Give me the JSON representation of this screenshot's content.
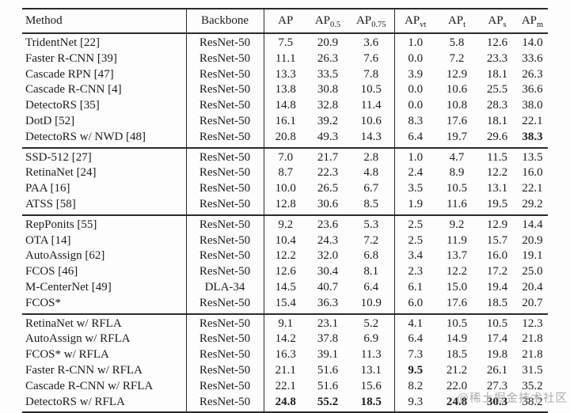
{
  "page": {
    "background": "#fdfdfd",
    "text_color": "#1b1b1b",
    "rule_color": "#2b2b2b",
    "watermark": {
      "text": "@稀土掘金技术社区",
      "color": "#919191"
    }
  },
  "table": {
    "header": {
      "method": "Method",
      "backbone": "Backbone",
      "metrics": [
        {
          "label": "AP",
          "sub": ""
        },
        {
          "label": "AP",
          "sub": "0.5"
        },
        {
          "label": "AP",
          "sub": "0.75"
        },
        {
          "label": "AP",
          "sub": "vt"
        },
        {
          "label": "AP",
          "sub": "t"
        },
        {
          "label": "AP",
          "sub": "s"
        },
        {
          "label": "AP",
          "sub": "m"
        }
      ]
    },
    "groups": [
      {
        "rows": [
          {
            "method": "TridentNet [22]",
            "backbone": "ResNet-50",
            "values": [
              "7.5",
              "20.9",
              "3.6",
              "1.0",
              "5.8",
              "12.6",
              "14.0"
            ],
            "bold": []
          },
          {
            "method": "Faster R-CNN [39]",
            "backbone": "ResNet-50",
            "values": [
              "11.1",
              "26.3",
              "7.6",
              "0.0",
              "7.2",
              "23.3",
              "33.6"
            ],
            "bold": []
          },
          {
            "method": "Cascade RPN [47]",
            "backbone": "ResNet-50",
            "values": [
              "13.3",
              "33.5",
              "7.8",
              "3.9",
              "12.9",
              "18.1",
              "26.3"
            ],
            "bold": []
          },
          {
            "method": "Cascade R-CNN [4]",
            "backbone": "ResNet-50",
            "values": [
              "13.8",
              "30.8",
              "10.5",
              "0.0",
              "10.6",
              "25.5",
              "36.6"
            ],
            "bold": []
          },
          {
            "method": "DetectoRS [35]",
            "backbone": "ResNet-50",
            "values": [
              "14.8",
              "32.8",
              "11.4",
              "0.0",
              "10.8",
              "28.3",
              "38.0"
            ],
            "bold": []
          },
          {
            "method": "DotD [52]",
            "backbone": "ResNet-50",
            "values": [
              "16.1",
              "39.2",
              "10.6",
              "8.3",
              "17.6",
              "18.1",
              "22.1"
            ],
            "bold": []
          },
          {
            "method": "DetectoRS w/ NWD [48]",
            "backbone": "ResNet-50",
            "values": [
              "20.8",
              "49.3",
              "14.3",
              "6.4",
              "19.7",
              "29.6",
              "38.3"
            ],
            "bold": [
              6
            ]
          }
        ]
      },
      {
        "rows": [
          {
            "method": "SSD-512 [27]",
            "backbone": "ResNet-50",
            "values": [
              "7.0",
              "21.7",
              "2.8",
              "1.0",
              "4.7",
              "11.5",
              "13.5"
            ],
            "bold": []
          },
          {
            "method": "RetinaNet [24]",
            "backbone": "ResNet-50",
            "values": [
              "8.7",
              "22.3",
              "4.8",
              "2.4",
              "8.9",
              "12.2",
              "16.0"
            ],
            "bold": []
          },
          {
            "method": "PAA [16]",
            "backbone": "ResNet-50",
            "values": [
              "10.0",
              "26.5",
              "6.7",
              "3.5",
              "10.5",
              "13.1",
              "22.1"
            ],
            "bold": []
          },
          {
            "method": "ATSS [58]",
            "backbone": "ResNet-50",
            "values": [
              "12.8",
              "30.6",
              "8.5",
              "1.9",
              "11.6",
              "19.5",
              "29.2"
            ],
            "bold": []
          }
        ]
      },
      {
        "rows": [
          {
            "method": "RepPonits [55]",
            "backbone": "ResNet-50",
            "values": [
              "9.2",
              "23.6",
              "5.3",
              "2.5",
              "9.2",
              "12.9",
              "14.4"
            ],
            "bold": []
          },
          {
            "method": "OTA [14]",
            "backbone": "ResNet-50",
            "values": [
              "10.4",
              "24.3",
              "7.2",
              "2.5",
              "11.9",
              "15.7",
              "20.9"
            ],
            "bold": []
          },
          {
            "method": "AutoAssign [62]",
            "backbone": "ResNet-50",
            "values": [
              "12.2",
              "32.0",
              "6.8",
              "3.4",
              "13.7",
              "16.0",
              "19.1"
            ],
            "bold": []
          },
          {
            "method": "FCOS [46]",
            "backbone": "ResNet-50",
            "values": [
              "12.6",
              "30.4",
              "8.1",
              "2.3",
              "12.2",
              "17.2",
              "25.0"
            ],
            "bold": []
          },
          {
            "method": "M-CenterNet [49]",
            "backbone": "DLA-34",
            "values": [
              "14.5",
              "40.7",
              "6.4",
              "6.1",
              "15.0",
              "19.4",
              "20.4"
            ],
            "bold": []
          },
          {
            "method": "FCOS*",
            "backbone": "ResNet-50",
            "values": [
              "15.4",
              "36.3",
              "10.9",
              "6.0",
              "17.6",
              "18.5",
              "20.7"
            ],
            "bold": []
          }
        ]
      },
      {
        "rows": [
          {
            "method": "RetinaNet w/ RFLA",
            "backbone": "ResNet-50",
            "values": [
              "9.1",
              "23.1",
              "5.2",
              "4.1",
              "10.5",
              "10.5",
              "12.3"
            ],
            "bold": []
          },
          {
            "method": "AutoAssign w/ RFLA",
            "backbone": "ResNet-50",
            "values": [
              "14.2",
              "37.8",
              "6.9",
              "6.4",
              "14.9",
              "17.4",
              "21.8"
            ],
            "bold": []
          },
          {
            "method": "FCOS* w/ RFLA",
            "backbone": "ResNet-50",
            "values": [
              "16.3",
              "39.1",
              "11.3",
              "7.3",
              "18.5",
              "19.8",
              "21.8"
            ],
            "bold": []
          },
          {
            "method": "Faster R-CNN w/ RFLA",
            "backbone": "ResNet-50",
            "values": [
              "21.1",
              "51.6",
              "13.1",
              "9.5",
              "21.2",
              "26.1",
              "31.5"
            ],
            "bold": [
              3
            ]
          },
          {
            "method": "Cascade R-CNN w/ RFLA",
            "backbone": "ResNet-50",
            "values": [
              "22.1",
              "51.6",
              "15.6",
              "8.2",
              "22.0",
              "27.3",
              "35.2"
            ],
            "bold": []
          },
          {
            "method": "DetectoRS w/ RFLA",
            "backbone": "ResNet-50",
            "values": [
              "24.8",
              "55.2",
              "18.5",
              "9.3",
              "24.8",
              "30.3",
              "38.2"
            ],
            "bold": [
              0,
              1,
              2,
              4,
              5
            ]
          }
        ]
      }
    ]
  }
}
